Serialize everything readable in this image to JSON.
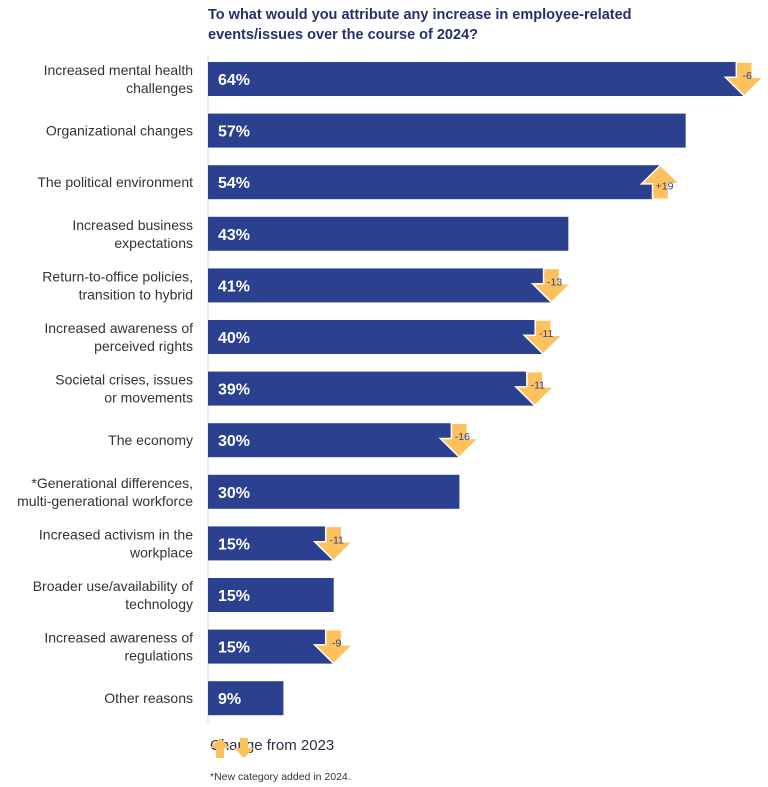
{
  "chart_data": {
    "type": "bar",
    "orientation": "horizontal",
    "title": "To what would you attribute any increase in employee-related events/issues over the course of 2024?",
    "categories": [
      "Increased mental health challenges",
      "Organizational changes",
      "The political environment",
      "Increased business expectations",
      "Return-to-office policies, transition to hybrid",
      "Increased awareness of perceived rights",
      "Societal crises, issues or movements",
      "The economy",
      "*Generational differences, multi-generational workforce",
      "Increased activism in the workplace",
      "Broader use/availability of technology",
      "Increased awareness of regulations",
      "Other reasons"
    ],
    "label_lines": [
      [
        "Increased mental health",
        "challenges"
      ],
      [
        "Organizational changes"
      ],
      [
        "The political environment"
      ],
      [
        "Increased business",
        "expectations"
      ],
      [
        "Return-to-office policies,",
        "transition to hybrid"
      ],
      [
        "Increased awareness of",
        "perceived rights"
      ],
      [
        "Societal crises, issues",
        "or movements"
      ],
      [
        "The economy"
      ],
      [
        "*Generational differences,",
        "multi-generational workforce"
      ],
      [
        "Increased activism in the",
        "workplace"
      ],
      [
        "Broader use/availability of",
        "technology"
      ],
      [
        "Increased awareness of",
        "regulations"
      ],
      [
        "Other reasons"
      ]
    ],
    "values": [
      64,
      57,
      54,
      43,
      41,
      40,
      39,
      30,
      30,
      15,
      15,
      15,
      9
    ],
    "value_labels": [
      "64%",
      "57%",
      "54%",
      "43%",
      "41%",
      "40%",
      "39%",
      "30%",
      "30%",
      "15%",
      "15%",
      "15%",
      "9%"
    ],
    "change_from_2023": [
      -6,
      null,
      19,
      null,
      -13,
      -11,
      -11,
      -16,
      null,
      -11,
      null,
      -9,
      null
    ],
    "change_labels": [
      "-6",
      null,
      "+19",
      null,
      "-13",
      "-11",
      "-11",
      "-16",
      null,
      "-11",
      null,
      "-9",
      null
    ],
    "xlim": [
      0,
      65
    ],
    "grid": false,
    "legend": {
      "label": "Change from 2023",
      "placement": "bottom"
    },
    "footnote": "*New category added in 2024.",
    "colors": {
      "bar": "#2b4190",
      "arrow": "#fdc25e",
      "label": "#333333",
      "title": "#27306b"
    }
  }
}
